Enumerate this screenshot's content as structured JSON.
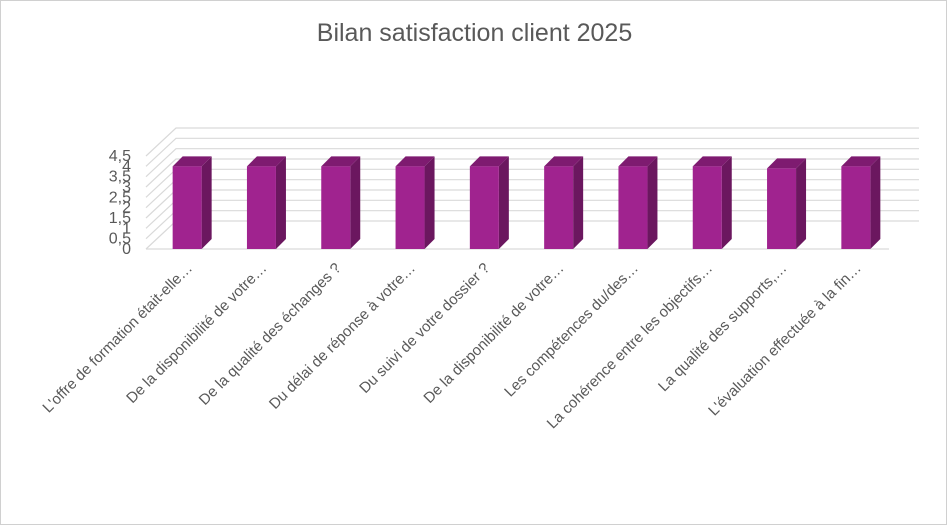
{
  "chart_data": {
    "type": "bar",
    "title": "Bilan satisfaction client 2025",
    "categories": [
      "L'offre de formation était-elle…",
      "De la disponibilité de votre…",
      "De la qualité des échanges ?",
      "Du délai de réponse à votre…",
      "Du suivi de votre dossier ?",
      "De la disponibilité de votre…",
      "Les compétences du/des…",
      "La cohérence entre les objectifs…",
      "La qualité des supports,…",
      "L'évaluation effectuée à la fin…"
    ],
    "values": [
      4.0,
      4.0,
      4.0,
      4.0,
      4.0,
      4.0,
      4.0,
      4.0,
      3.9,
      4.0
    ],
    "y_ticks": [
      "0",
      "0,5",
      "1",
      "1,5",
      "2",
      "2,5",
      "3",
      "3,5",
      "4",
      "4,5"
    ],
    "ylim": [
      0,
      4.5
    ],
    "grid": true,
    "legend": "none",
    "bar_front_color": "#A0238F",
    "bar_side_color": "#6B175F",
    "bar_top_color": "#7E1B70",
    "grid_color": "#D9D9D9"
  }
}
